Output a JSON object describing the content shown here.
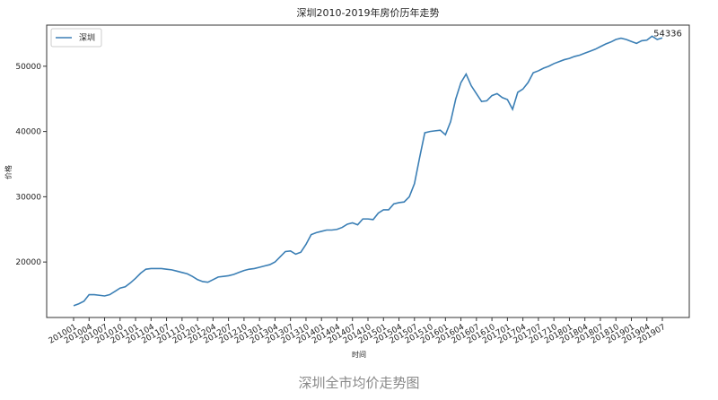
{
  "chart_data": {
    "type": "line",
    "title": "深圳2010-2019年房价历年走势",
    "x_label": "时间",
    "y_label": "价格",
    "categories": [
      "201001",
      null,
      null,
      "201004",
      null,
      null,
      "201007",
      null,
      null,
      "201010",
      null,
      null,
      "201101",
      null,
      null,
      "201104",
      null,
      null,
      "201107",
      null,
      null,
      "201110",
      null,
      null,
      "201201",
      null,
      null,
      "201204",
      null,
      null,
      "201207",
      null,
      null,
      "201210",
      null,
      null,
      "201301",
      null,
      null,
      "201304",
      null,
      null,
      "201307",
      null,
      null,
      "201310",
      null,
      null,
      "201401",
      null,
      null,
      "201404",
      null,
      null,
      "201407",
      null,
      null,
      "201410",
      null,
      null,
      "201501",
      null,
      null,
      "201504",
      null,
      null,
      "201507",
      null,
      null,
      "201510",
      null,
      null,
      "201601",
      null,
      null,
      "201604",
      null,
      null,
      "201607",
      null,
      null,
      "201610",
      null,
      null,
      "201701",
      null,
      null,
      "201704",
      null,
      null,
      "201707",
      null,
      null,
      "201710",
      null,
      null,
      "201801",
      null,
      null,
      "201804",
      null,
      null,
      "201807",
      null,
      null,
      "201810",
      null,
      null,
      "201901",
      null,
      null,
      "201904",
      null,
      null,
      "201907"
    ],
    "series": [
      {
        "name": "深圳",
        "color": "#3b7fb5",
        "values": [
          13300,
          13600,
          14000,
          15000,
          15000,
          14900,
          14800,
          15000,
          15500,
          16000,
          16200,
          16800,
          17500,
          18300,
          18900,
          19000,
          19000,
          19000,
          18900,
          18800,
          18600,
          18400,
          18200,
          17800,
          17300,
          17000,
          16900,
          17300,
          17700,
          17800,
          17900,
          18100,
          18400,
          18700,
          18900,
          19000,
          19200,
          19400,
          19600,
          20000,
          20800,
          21600,
          21700,
          21200,
          21500,
          22700,
          24200,
          24500,
          24700,
          24900,
          24900,
          25000,
          25300,
          25800,
          26000,
          25700,
          26600,
          26600,
          26500,
          27500,
          28000,
          28000,
          28900,
          29100,
          29200,
          30000,
          32000,
          36000,
          39800,
          40000,
          40100,
          40200,
          39500,
          41500,
          45000,
          47500,
          48800,
          47000,
          45800,
          44600,
          44700,
          45500,
          45800,
          45200,
          44900,
          43400,
          46000,
          46500,
          47500,
          49000,
          49300,
          49700,
          50000,
          50400,
          50700,
          51000,
          51200,
          51500,
          51700,
          52000,
          52300,
          52600,
          53000,
          53400,
          53700,
          54100,
          54300,
          54100,
          53800,
          53500,
          53900,
          54000,
          54600,
          54100,
          54336
        ]
      }
    ],
    "annotation": "54336",
    "ylim": [
      11500,
      56300
    ],
    "yticks": [
      20000,
      30000,
      40000,
      50000
    ],
    "grid": false,
    "legend": "upper left"
  },
  "caption": "深圳全市均价走势图"
}
